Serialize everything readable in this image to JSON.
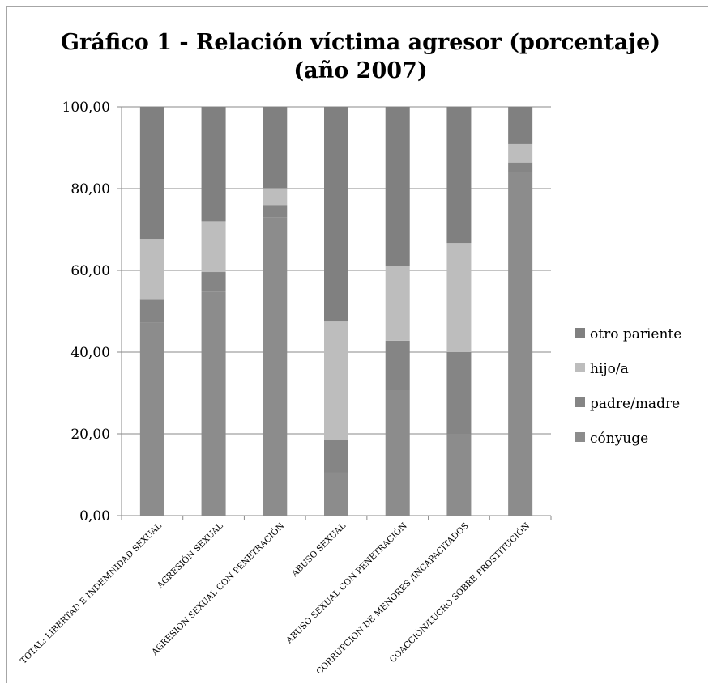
{
  "chart_data": {
    "type": "bar",
    "stacked": true,
    "title": [
      "Gráfico 1 - Relación víctima agresor (porcentaje)",
      "(año 2007)"
    ],
    "ylim": [
      0,
      100
    ],
    "yticks": [
      "0,00",
      "20,00",
      "40,00",
      "60,00",
      "80,00",
      "100,00"
    ],
    "ytick_values": [
      0,
      20,
      40,
      60,
      80,
      100
    ],
    "grid": true,
    "legend_position": "right",
    "categories": [
      "TOTAL: LIBERTAD E INDEMNIDAD SEXUAL",
      "AGRESIÓN SEXUAL",
      "AGRESIÓN SEXUAL CON PENETRACIÓN",
      "ABUSO SEXUAL",
      "ABUSO SEXUAL CON PENETRACIÓN",
      "CORRUPCION DE MENORES /INCAPACITADOS",
      "COACCIÓN/LUCRO SOBRE PROSTITUCIÓN"
    ],
    "series": [
      {
        "name": "cónyuge",
        "color": "#8c8c8c",
        "values": [
          47.2,
          54.8,
          73.0,
          10.5,
          30.6,
          20.0,
          84.1
        ]
      },
      {
        "name": "padre/madre",
        "color": "#858585",
        "values": [
          5.8,
          4.8,
          3.0,
          8.1,
          12.2,
          20.0,
          2.3
        ]
      },
      {
        "name": "hijo/a",
        "color": "#bdbdbd",
        "values": [
          14.7,
          12.4,
          4.1,
          28.9,
          18.2,
          26.7,
          4.5
        ]
      },
      {
        "name": "otro pariente",
        "color": "#808080",
        "values": [
          32.3,
          28.0,
          19.9,
          52.5,
          39.0,
          33.3,
          9.1
        ]
      }
    ]
  }
}
